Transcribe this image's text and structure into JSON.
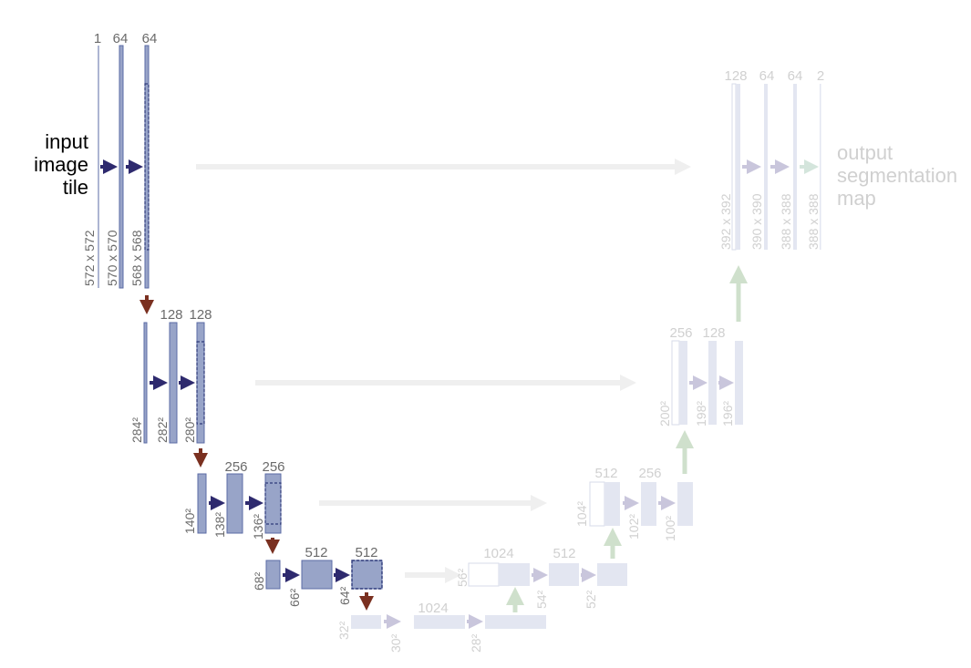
{
  "input_label": [
    "input",
    "image",
    "tile"
  ],
  "output_label": [
    "output",
    "segmentation",
    "map"
  ],
  "channels": {
    "l1a": "1",
    "l1b": "64",
    "l1c": "64",
    "l2b": "128",
    "l2c": "128",
    "l3b": "256",
    "l3c": "256",
    "l4b": "512",
    "l4c": "512",
    "l5b": "1024",
    "u4a": "1024",
    "u4b": "512",
    "u3a": "512",
    "u3b": "256",
    "u2a": "256",
    "u2b": "128",
    "u1a": "128",
    "u1b": "64",
    "u1c": "64",
    "u1d": "2"
  },
  "sizes": {
    "l1a": "572 x 572",
    "l1b": "570 x 570",
    "l1c": "568 x 568",
    "l2a": "284²",
    "l2b": "282²",
    "l2c": "280²",
    "l3a": "140²",
    "l3b": "138²",
    "l3c": "136²",
    "l4a": "68²",
    "l4b": "66²",
    "l4c": "64²",
    "l5a": "32²",
    "l5b": "30²",
    "l5c": "28²",
    "u4a": "56²",
    "u4b": "54²",
    "u4c": "52²",
    "u3a": "104²",
    "u3b": "102²",
    "u3c": "100²",
    "u2a": "200²",
    "u2b": "198²",
    "u2c": "196²",
    "u1a": "392 x 392",
    "u1b": "390 x 390",
    "u1c": "388 x 388",
    "u1d": "388 x 388"
  },
  "colors": {
    "block": "#98a4c8",
    "block_border": "#5b6ba6",
    "conv_arrow": "#2e2a6e",
    "pool_arrow": "#7a3020",
    "label": "#6b6b6b",
    "faded_block": "#e3e6f1",
    "faded_text": "#d0d0d0",
    "faded_conv_arrow": "#c9c6dc",
    "faded_up_arrow": "#cfe0cc",
    "copy_arrow": "#efefef",
    "final_arrow": "#d4e5dc"
  }
}
